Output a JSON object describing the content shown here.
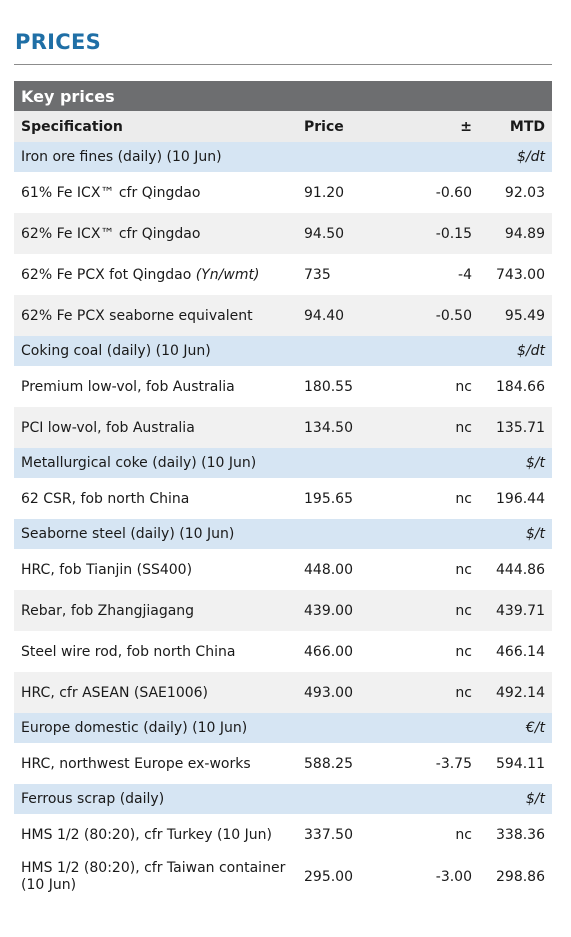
{
  "title": "PRICES",
  "table": {
    "heading": "Key prices",
    "columns": {
      "spec": "Specification",
      "price": "Price",
      "change": "±",
      "mtd": "MTD"
    },
    "sections": [
      {
        "label": "Iron ore fines (daily) (10 Jun)",
        "unit": "$/dt",
        "rows": [
          {
            "spec": "61% Fe ICX™ cfr Qingdao",
            "price": "91.20",
            "change": "-0.60",
            "mtd": "92.03"
          },
          {
            "spec": "62% Fe ICX™ cfr Qingdao",
            "price": "94.50",
            "change": "-0.15",
            "mtd": "94.89"
          },
          {
            "spec": "62% Fe PCX fot Qingdao ",
            "spec_unit": "(Yn/wmt)",
            "price": "735",
            "change": "-4",
            "mtd": "743.00"
          },
          {
            "spec": "62% Fe PCX seaborne equivalent",
            "price": "94.40",
            "change": "-0.50",
            "mtd": "95.49"
          }
        ]
      },
      {
        "label": "Coking coal (daily) (10 Jun)",
        "unit": "$/dt",
        "rows": [
          {
            "spec": "Premium low-vol, fob Australia",
            "price": "180.55",
            "change": "nc",
            "mtd": "184.66"
          },
          {
            "spec": "PCI low-vol, fob Australia",
            "price": "134.50",
            "change": "nc",
            "mtd": "135.71"
          }
        ]
      },
      {
        "label": "Metallurgical coke (daily) (10 Jun)",
        "unit": "$/t",
        "rows": [
          {
            "spec": "62 CSR, fob north China",
            "price": "195.65",
            "change": "nc",
            "mtd": "196.44"
          }
        ]
      },
      {
        "label": "Seaborne steel (daily) (10 Jun)",
        "unit": "$/t",
        "rows": [
          {
            "spec": "HRC, fob Tianjin (SS400)",
            "price": "448.00",
            "change": "nc",
            "mtd": "444.86"
          },
          {
            "spec": "Rebar, fob Zhangjiagang",
            "price": "439.00",
            "change": "nc",
            "mtd": "439.71"
          },
          {
            "spec": "Steel wire rod, fob north China",
            "price": "466.00",
            "change": "nc",
            "mtd": "466.14"
          },
          {
            "spec": "HRC, cfr ASEAN (SAE1006)",
            "price": "493.00",
            "change": "nc",
            "mtd": "492.14"
          }
        ]
      },
      {
        "label": "Europe domestic (daily) (10 Jun)",
        "unit": "€/t",
        "rows": [
          {
            "spec": "HRC, northwest Europe ex-works",
            "price": "588.25",
            "change": "-3.75",
            "mtd": "594.11"
          }
        ]
      },
      {
        "label": "Ferrous scrap (daily)",
        "unit": "$/t",
        "rows": [
          {
            "spec": "HMS 1/2 (80:20), cfr Turkey (10 Jun)",
            "price": "337.50",
            "change": "nc",
            "mtd": "338.36"
          },
          {
            "spec": "HMS 1/2 (80:20), cfr Taiwan container (10 Jun)",
            "price": "295.00",
            "change": "-3.00",
            "mtd": "298.86"
          }
        ]
      }
    ]
  }
}
